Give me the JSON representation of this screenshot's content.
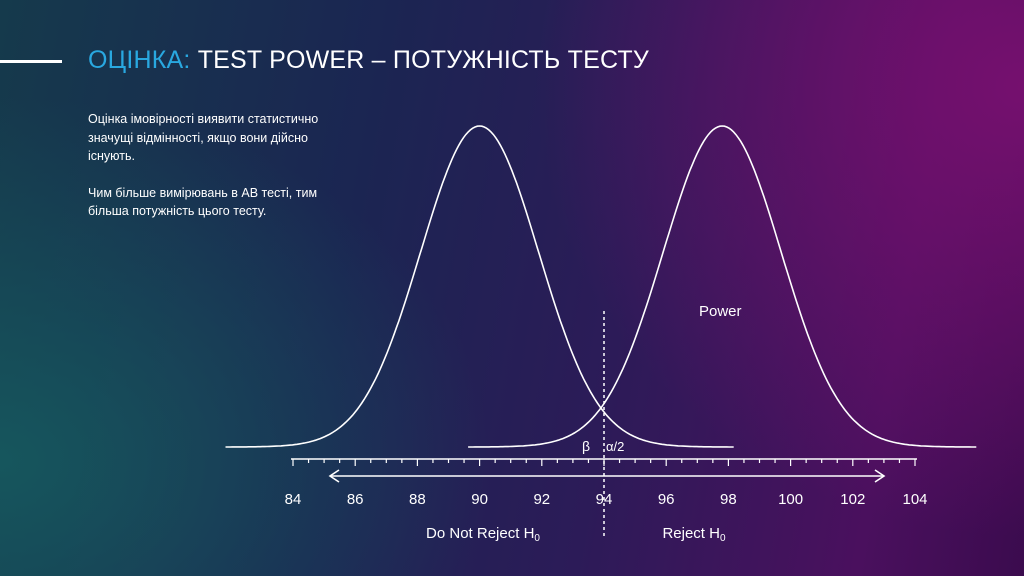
{
  "header": {
    "title_accent": "ОЦІНКА:",
    "title_main": "TEST POWER – ПОТУЖНІСТЬ ТЕСТУ"
  },
  "description": {
    "paragraph_1": "Оцінка імовірності виявити статистично значущі відмінності, якщо вони дійсно існують.",
    "paragraph_2": "Чим більше вимірювань в AB тесті, тим більша потужність цього тесту."
  },
  "colors": {
    "accent": "#29a8e0",
    "foreground": "#ffffff"
  },
  "chart_data": {
    "type": "line",
    "xlim": [
      84,
      104
    ],
    "x_ticks": [
      84,
      86,
      88,
      90,
      92,
      94,
      96,
      98,
      100,
      102,
      104
    ],
    "tick_labels": [
      "84",
      "86",
      "88",
      "90",
      "92",
      "94",
      "96",
      "98",
      "100",
      "102",
      "104"
    ],
    "series": [
      {
        "mean": 90,
        "sd": 1.9
      },
      {
        "mean": 97.8,
        "sd": 1.9
      }
    ],
    "critical_value": 94,
    "annotations": {
      "power": "Power",
      "beta": "β",
      "alpha_half": "α/2"
    },
    "regions": {
      "left_label": "Do Not Reject H",
      "left_subscript": "0",
      "right_label": "Reject H",
      "right_subscript": "0"
    },
    "grid": false,
    "legend": "none"
  }
}
